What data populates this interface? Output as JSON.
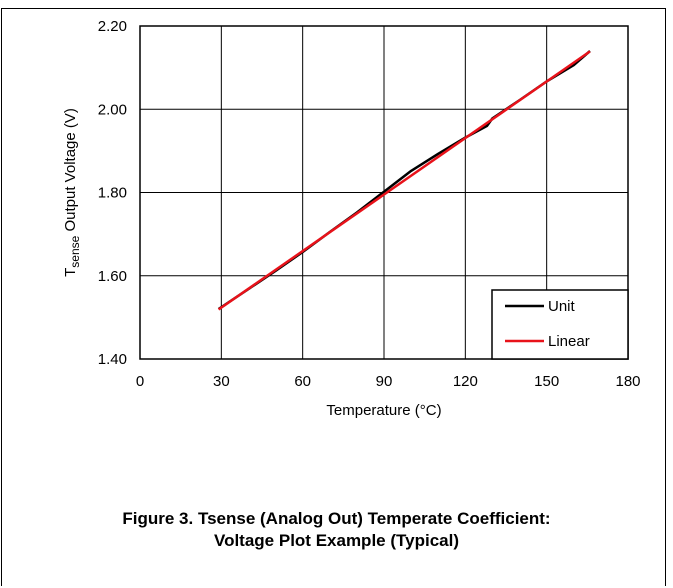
{
  "chart_data": {
    "type": "line",
    "xlabel": "Temperature (°C)",
    "ylabel_main": "T",
    "ylabel_sub": "sense",
    "ylabel_rest": " Output Voltage (V)",
    "xlim": [
      0,
      180
    ],
    "ylim": [
      1.4,
      2.2
    ],
    "xticks": [
      0,
      30,
      60,
      90,
      120,
      150,
      180
    ],
    "xtick_labels": [
      "0",
      "30",
      "60",
      "90",
      "120",
      "150",
      "180"
    ],
    "yticks": [
      1.4,
      1.6,
      1.8,
      2.0,
      2.2
    ],
    "ytick_labels": [
      "1.40",
      "1.60",
      "1.80",
      "2.00",
      "2.20"
    ],
    "grid": true,
    "legend_position": "bottom-right",
    "series": [
      {
        "name": "Unit",
        "color": "#000000",
        "x": [
          29,
          40,
          50,
          60,
          70,
          80,
          90,
          100,
          110,
          120,
          128,
          130,
          140,
          150,
          160,
          166
        ],
        "y": [
          1.52,
          1.568,
          1.612,
          1.657,
          1.705,
          1.752,
          1.802,
          1.852,
          1.893,
          1.932,
          1.96,
          1.978,
          2.022,
          2.067,
          2.106,
          2.14
        ]
      },
      {
        "name": "Linear",
        "color": "#e8121a",
        "x": [
          29,
          166
        ],
        "y": [
          1.519,
          2.139
        ]
      }
    ]
  },
  "caption": {
    "line1": "Figure 3. Tsense (Analog Out) Temperate Coefficient:",
    "line2": "Voltage Plot Example (Typical)"
  }
}
